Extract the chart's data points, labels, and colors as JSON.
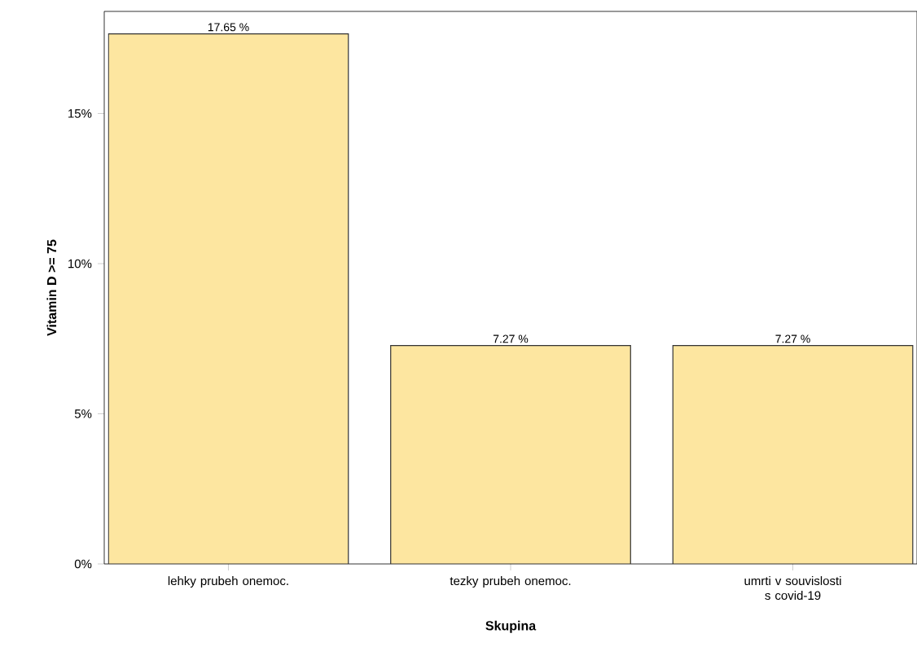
{
  "chart_data": {
    "type": "bar",
    "xlabel": "Skupina",
    "ylabel": "Vitamin D >= 75",
    "categories": [
      "lehky prubeh onemoc.",
      "tezky prubeh onemoc.",
      "umrti v souvislosti s covid-19"
    ],
    "values": [
      17.65,
      7.27,
      7.27
    ],
    "value_labels": [
      "17.65 %",
      "7.27 %",
      "7.27 %"
    ],
    "color": "#fde6a0",
    "ylim": [
      0,
      18.4
    ],
    "yticks": [
      {
        "value": 0,
        "label": "0%"
      },
      {
        "value": 5,
        "label": "5%"
      },
      {
        "value": 10,
        "label": "10%"
      },
      {
        "value": 15,
        "label": "15%"
      }
    ],
    "grid": false,
    "legend": false
  }
}
